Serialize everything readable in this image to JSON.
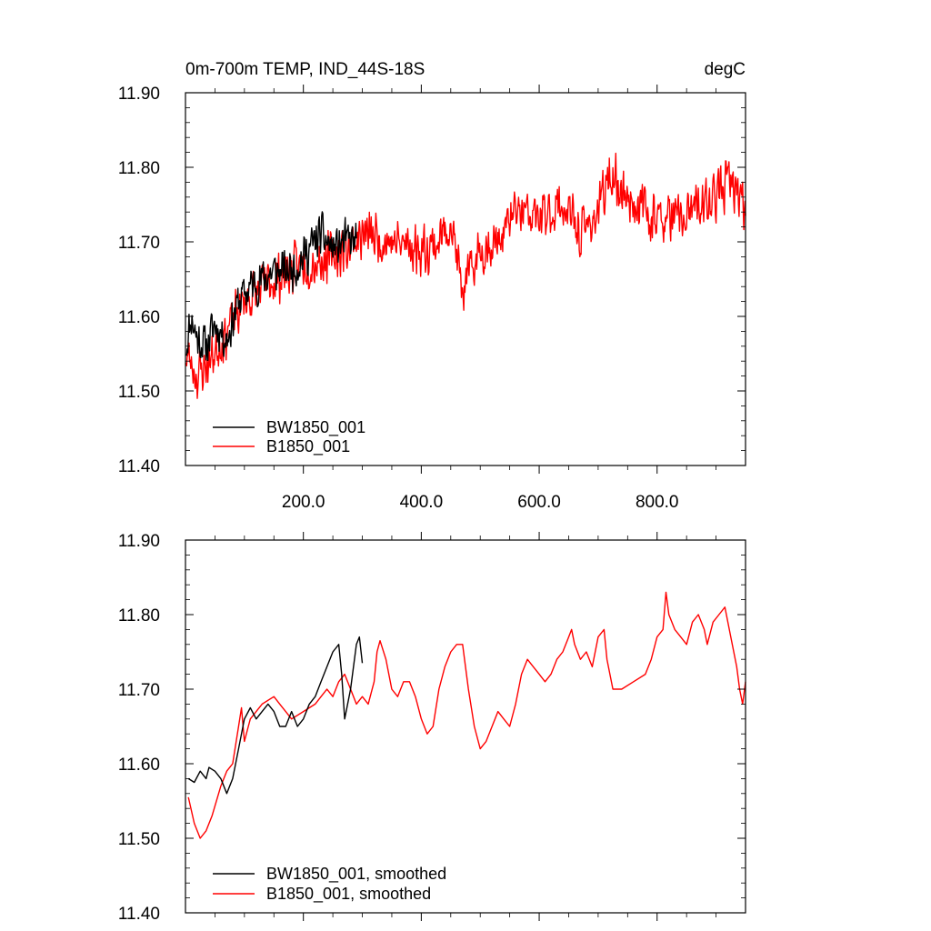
{
  "chart_data": [
    {
      "type": "line",
      "title": "0m-700m TEMP, IND_44S-18S",
      "units": "degC",
      "xlim": [
        0,
        950
      ],
      "ylim": [
        11.4,
        11.9
      ],
      "x_ticks": [
        200,
        400,
        600,
        800
      ],
      "x_tick_labels": [
        "200.0",
        "400.0",
        "600.0",
        "800.0"
      ],
      "y_ticks": [
        11.4,
        11.5,
        11.6,
        11.7,
        11.8,
        11.9
      ],
      "y_tick_labels": [
        "11.40",
        "11.50",
        "11.60",
        "11.70",
        "11.80",
        "11.90"
      ],
      "legend_position": "bottom-left",
      "series": [
        {
          "name": "BW1850_001",
          "color": "#000000",
          "noise": 0.035,
          "seed": 11,
          "keypoints": [
            [
              1,
              11.56
            ],
            [
              10,
              11.6
            ],
            [
              20,
              11.57
            ],
            [
              35,
              11.56
            ],
            [
              50,
              11.59
            ],
            [
              70,
              11.57
            ],
            [
              90,
              11.62
            ],
            [
              110,
              11.64
            ],
            [
              130,
              11.65
            ],
            [
              150,
              11.66
            ],
            [
              170,
              11.66
            ],
            [
              190,
              11.67
            ],
            [
              210,
              11.69
            ],
            [
              230,
              11.71
            ],
            [
              250,
              11.69
            ],
            [
              270,
              11.7
            ],
            [
              290,
              11.7
            ]
          ]
        },
        {
          "name": "B1850_001",
          "color": "#ff0000",
          "noise": 0.04,
          "seed": 23,
          "keypoints": [
            [
              1,
              11.55
            ],
            [
              20,
              11.52
            ],
            [
              40,
              11.54
            ],
            [
              70,
              11.58
            ],
            [
              100,
              11.62
            ],
            [
              150,
              11.65
            ],
            [
              200,
              11.67
            ],
            [
              250,
              11.68
            ],
            [
              300,
              11.71
            ],
            [
              350,
              11.7
            ],
            [
              400,
              11.69
            ],
            [
              430,
              11.7
            ],
            [
              450,
              11.73
            ],
            [
              470,
              11.63
            ],
            [
              500,
              11.69
            ],
            [
              530,
              11.7
            ],
            [
              560,
              11.74
            ],
            [
              600,
              11.73
            ],
            [
              640,
              11.75
            ],
            [
              670,
              11.71
            ],
            [
              700,
              11.74
            ],
            [
              720,
              11.79
            ],
            [
              750,
              11.76
            ],
            [
              800,
              11.73
            ],
            [
              840,
              11.73
            ],
            [
              860,
              11.74
            ],
            [
              900,
              11.76
            ],
            [
              920,
              11.78
            ],
            [
              940,
              11.76
            ],
            [
              950,
              11.74
            ]
          ]
        }
      ]
    },
    {
      "type": "line",
      "title": "",
      "units": "",
      "xlim": [
        0,
        950
      ],
      "ylim": [
        11.4,
        11.9
      ],
      "x_ticks": [
        200,
        400,
        600,
        800
      ],
      "x_tick_labels": [],
      "y_ticks": [
        11.4,
        11.5,
        11.6,
        11.7,
        11.8,
        11.9
      ],
      "y_tick_labels": [
        "11.40",
        "11.50",
        "11.60",
        "11.70",
        "11.80",
        "11.90"
      ],
      "legend_position": "bottom-left",
      "series": [
        {
          "name": "BW1850_001, smoothed",
          "color": "#000000",
          "noise": 0,
          "seed": 0,
          "points": [
            [
              5,
              11.58
            ],
            [
              15,
              11.575
            ],
            [
              25,
              11.59
            ],
            [
              35,
              11.58
            ],
            [
              40,
              11.595
            ],
            [
              50,
              11.59
            ],
            [
              60,
              11.58
            ],
            [
              70,
              11.56
            ],
            [
              80,
              11.58
            ],
            [
              90,
              11.62
            ],
            [
              100,
              11.66
            ],
            [
              110,
              11.675
            ],
            [
              120,
              11.66
            ],
            [
              130,
              11.67
            ],
            [
              140,
              11.68
            ],
            [
              150,
              11.67
            ],
            [
              160,
              11.65
            ],
            [
              170,
              11.65
            ],
            [
              180,
              11.67
            ],
            [
              190,
              11.65
            ],
            [
              200,
              11.66
            ],
            [
              210,
              11.68
            ],
            [
              220,
              11.69
            ],
            [
              230,
              11.71
            ],
            [
              240,
              11.73
            ],
            [
              250,
              11.75
            ],
            [
              260,
              11.76
            ],
            [
              265,
              11.72
            ],
            [
              270,
              11.66
            ],
            [
              280,
              11.7
            ],
            [
              290,
              11.76
            ],
            [
              295,
              11.77
            ],
            [
              300,
              11.735
            ]
          ]
        },
        {
          "name": "B1850_001, smoothed",
          "color": "#ff0000",
          "noise": 0,
          "seed": 0,
          "points": [
            [
              5,
              11.555
            ],
            [
              15,
              11.52
            ],
            [
              25,
              11.5
            ],
            [
              35,
              11.51
            ],
            [
              45,
              11.53
            ],
            [
              60,
              11.57
            ],
            [
              70,
              11.59
            ],
            [
              80,
              11.6
            ],
            [
              90,
              11.65
            ],
            [
              95,
              11.675
            ],
            [
              100,
              11.63
            ],
            [
              110,
              11.66
            ],
            [
              120,
              11.67
            ],
            [
              130,
              11.68
            ],
            [
              150,
              11.69
            ],
            [
              160,
              11.68
            ],
            [
              170,
              11.67
            ],
            [
              180,
              11.66
            ],
            [
              200,
              11.67
            ],
            [
              220,
              11.68
            ],
            [
              230,
              11.69
            ],
            [
              240,
              11.7
            ],
            [
              250,
              11.69
            ],
            [
              260,
              11.71
            ],
            [
              270,
              11.72
            ],
            [
              280,
              11.7
            ],
            [
              290,
              11.68
            ],
            [
              300,
              11.69
            ],
            [
              310,
              11.68
            ],
            [
              320,
              11.71
            ],
            [
              325,
              11.75
            ],
            [
              330,
              11.765
            ],
            [
              340,
              11.74
            ],
            [
              350,
              11.7
            ],
            [
              360,
              11.69
            ],
            [
              370,
              11.71
            ],
            [
              380,
              11.71
            ],
            [
              390,
              11.69
            ],
            [
              400,
              11.66
            ],
            [
              410,
              11.64
            ],
            [
              420,
              11.65
            ],
            [
              430,
              11.7
            ],
            [
              440,
              11.73
            ],
            [
              450,
              11.75
            ],
            [
              460,
              11.76
            ],
            [
              470,
              11.76
            ],
            [
              475,
              11.73
            ],
            [
              480,
              11.7
            ],
            [
              490,
              11.65
            ],
            [
              500,
              11.62
            ],
            [
              510,
              11.63
            ],
            [
              520,
              11.65
            ],
            [
              530,
              11.67
            ],
            [
              540,
              11.66
            ],
            [
              550,
              11.65
            ],
            [
              560,
              11.68
            ],
            [
              570,
              11.72
            ],
            [
              580,
              11.74
            ],
            [
              590,
              11.73
            ],
            [
              600,
              11.72
            ],
            [
              610,
              11.71
            ],
            [
              620,
              11.72
            ],
            [
              630,
              11.74
            ],
            [
              640,
              11.75
            ],
            [
              650,
              11.77
            ],
            [
              655,
              11.78
            ],
            [
              660,
              11.76
            ],
            [
              670,
              11.74
            ],
            [
              680,
              11.75
            ],
            [
              690,
              11.73
            ],
            [
              700,
              11.77
            ],
            [
              710,
              11.78
            ],
            [
              715,
              11.74
            ],
            [
              725,
              11.7
            ],
            [
              740,
              11.7
            ],
            [
              760,
              11.71
            ],
            [
              780,
              11.72
            ],
            [
              790,
              11.74
            ],
            [
              800,
              11.77
            ],
            [
              810,
              11.78
            ],
            [
              815,
              11.83
            ],
            [
              820,
              11.8
            ],
            [
              830,
              11.78
            ],
            [
              840,
              11.77
            ],
            [
              850,
              11.76
            ],
            [
              860,
              11.79
            ],
            [
              870,
              11.8
            ],
            [
              880,
              11.78
            ],
            [
              885,
              11.76
            ],
            [
              895,
              11.79
            ],
            [
              905,
              11.8
            ],
            [
              915,
              11.81
            ],
            [
              925,
              11.77
            ],
            [
              935,
              11.73
            ],
            [
              940,
              11.7
            ],
            [
              945,
              11.68
            ],
            [
              950,
              11.71
            ]
          ]
        }
      ]
    }
  ]
}
